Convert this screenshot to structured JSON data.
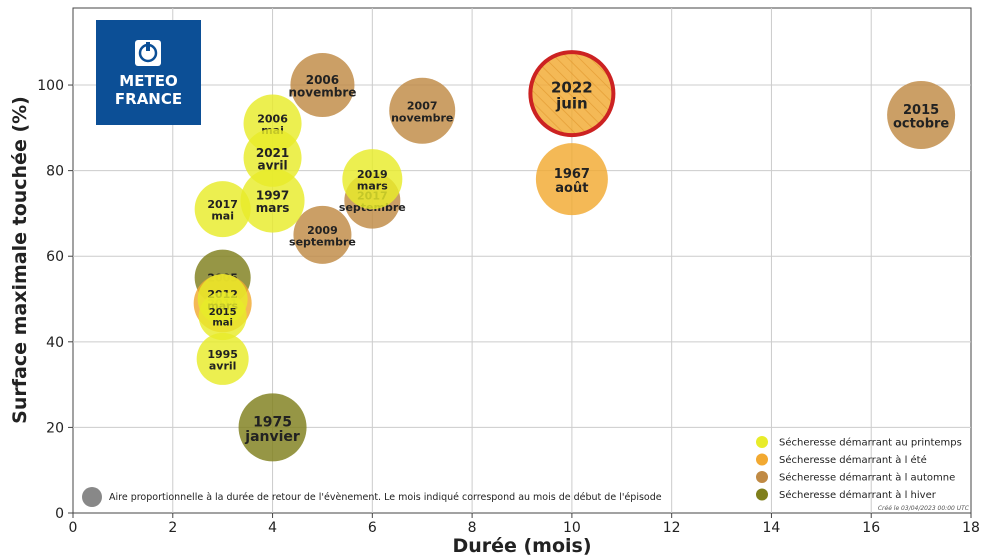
{
  "colors": {
    "printemps": "#e8ec2a",
    "ete": "#f2a931",
    "automne": "#c08a44",
    "hiver": "#7f7f1c",
    "highlight_ring": "#cc2222",
    "logo_bg": "#0c4f96",
    "grid": "#cccccc"
  },
  "logo": {
    "icon": "meteo-france-emblem-icon",
    "line1": "METEO",
    "line2": "FRANCE"
  },
  "size_note": "Aire proportionnelle à la durée de retour de l'évènement. Le mois indiqué correspond au mois de début de l'épisode",
  "credit": "Créé le 03/04/2023 00:00 UTC",
  "chart_data": {
    "type": "scatter",
    "xlabel": "Durée (mois)",
    "ylabel": "Surface maximale touchée (%)",
    "xlim": [
      0,
      18
    ],
    "ylim": [
      0,
      118
    ],
    "xticks": [
      "0",
      "2",
      "4",
      "6",
      "8",
      "10",
      "12",
      "14",
      "16",
      "18"
    ],
    "yticks": [
      "0",
      "20",
      "40",
      "60",
      "80",
      "100"
    ],
    "xtick_values": [
      0,
      2,
      4,
      6,
      8,
      10,
      12,
      14,
      16,
      18
    ],
    "ytick_values": [
      0,
      20,
      40,
      60,
      80,
      100
    ],
    "grid": true,
    "legend_position": "bottom-right",
    "legend": [
      {
        "label": "Sécheresse démarrant au printemps",
        "color_key": "printemps"
      },
      {
        "label": "Sécheresse démarrant à l été",
        "color_key": "ete"
      },
      {
        "label": "Sécheresse démarrant à l automne",
        "color_key": "automne"
      },
      {
        "label": "Sécheresse démarrant à l hiver",
        "color_key": "hiver"
      }
    ],
    "points": [
      {
        "year": "1975",
        "month": "janvier",
        "x": 4,
        "y": 20,
        "radius": 34,
        "season": "hiver",
        "font": 14
      },
      {
        "year": "2005",
        "month": "",
        "x": 3,
        "y": 55,
        "radius": 28,
        "season": "hiver",
        "font": 11
      },
      {
        "year": "2011",
        "month": "",
        "x": 3,
        "y": 49,
        "radius": 29,
        "season": "ete",
        "font": 11
      },
      {
        "year": "2012",
        "month": "mars",
        "x": 3,
        "y": 50,
        "radius": 25,
        "season": "printemps",
        "font": 11
      },
      {
        "year": "2015",
        "month": "mai",
        "x": 3,
        "y": 46,
        "radius": 24,
        "season": "printemps",
        "font": 10
      },
      {
        "year": "1995",
        "month": "avril",
        "x": 3,
        "y": 36,
        "radius": 26,
        "season": "printemps",
        "font": 11
      },
      {
        "year": "2017",
        "month": "mai",
        "x": 3,
        "y": 71,
        "radius": 28,
        "season": "printemps",
        "font": 11
      },
      {
        "year": "2009",
        "month": "septembre",
        "x": 5,
        "y": 65,
        "radius": 29,
        "season": "automne",
        "font": 11
      },
      {
        "year": "1997",
        "month": "mars",
        "x": 4,
        "y": 73,
        "radius": 32,
        "season": "printemps",
        "font": 12
      },
      {
        "year": "2006",
        "month": "mai",
        "x": 4,
        "y": 91,
        "radius": 29,
        "season": "printemps",
        "font": 11
      },
      {
        "year": "2021",
        "month": "avril",
        "x": 4,
        "y": 83,
        "radius": 29,
        "season": "printemps",
        "font": 12
      },
      {
        "year": "2006",
        "month": "novembre",
        "x": 5,
        "y": 100,
        "radius": 32,
        "season": "automne",
        "font": 12
      },
      {
        "year": "2017",
        "month": "septembre",
        "x": 6,
        "y": 73,
        "radius": 28,
        "season": "automne",
        "font": 11
      },
      {
        "year": "2019",
        "month": "mars",
        "x": 6,
        "y": 78,
        "radius": 30,
        "season": "printemps",
        "font": 11
      },
      {
        "year": "2007",
        "month": "novembre",
        "x": 7,
        "y": 94,
        "radius": 33,
        "season": "automne",
        "font": 11
      },
      {
        "year": "1967",
        "month": "août",
        "x": 10,
        "y": 78,
        "radius": 36,
        "season": "ete",
        "font": 13
      },
      {
        "year": "2022",
        "month": "juin",
        "x": 10,
        "y": 98,
        "radius": 43,
        "season": "ete",
        "font": 15,
        "highlight": true
      },
      {
        "year": "2015",
        "month": "octobre",
        "x": 17,
        "y": 93,
        "radius": 34,
        "season": "automne",
        "font": 13
      }
    ]
  }
}
